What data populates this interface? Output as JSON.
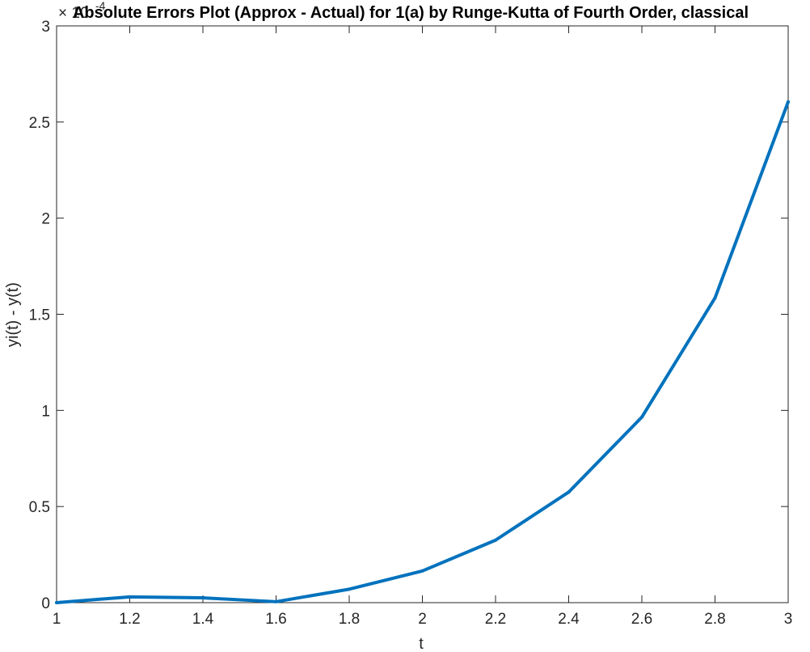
{
  "chart_data": {
    "type": "line",
    "title": "Absolute Errors Plot (Approx - Actual) for 1(a) by Runge-Kutta of Fourth Order, classical",
    "xlabel": "t",
    "ylabel": "yi(t) - y(t)",
    "y_exponent_label": "× 10",
    "y_exponent_power": "-4",
    "xlim": [
      1,
      3
    ],
    "ylim": [
      0,
      3
    ],
    "x_ticks": [
      "1",
      "1.2",
      "1.4",
      "1.6",
      "1.8",
      "2",
      "2.2",
      "2.4",
      "2.6",
      "2.8",
      "3"
    ],
    "y_ticks": [
      "0",
      "0.5",
      "1",
      "1.5",
      "2",
      "2.5",
      "3"
    ],
    "grid": false,
    "color": "#0072BD",
    "series": [
      {
        "x": [
          1.0,
          1.2,
          1.4,
          1.6,
          1.8,
          2.0,
          2.2,
          2.4,
          2.6,
          2.8,
          3.0
        ],
        "values": [
          0.0,
          0.03,
          0.025,
          0.005,
          0.07,
          0.165,
          0.325,
          0.575,
          0.965,
          1.585,
          2.605
        ]
      }
    ]
  }
}
